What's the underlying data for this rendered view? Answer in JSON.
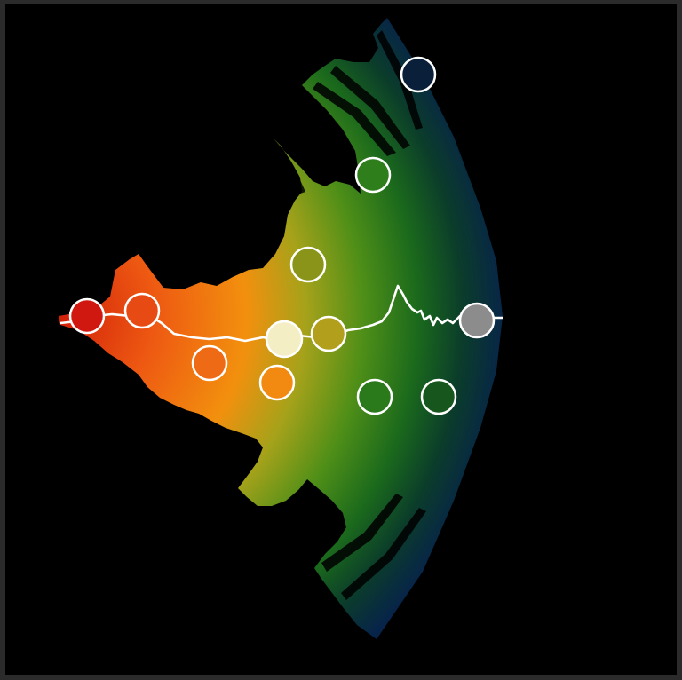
{
  "view": {
    "background": "#000000",
    "frame_color": "#2b2b2b",
    "gradient_stops": [
      {
        "offset": 0.0,
        "color": "#d2200a"
      },
      {
        "offset": 0.22,
        "color": "#ee5a12"
      },
      {
        "offset": 0.42,
        "color": "#f2900e"
      },
      {
        "offset": 0.55,
        "color": "#a6a21a"
      },
      {
        "offset": 0.68,
        "color": "#4f8f18"
      },
      {
        "offset": 0.8,
        "color": "#1b6a1c"
      },
      {
        "offset": 0.9,
        "color": "#0b3d2a"
      },
      {
        "offset": 1.0,
        "color": "#07234a"
      }
    ],
    "trace_color": "#ffffff",
    "marker_stroke": "#ffffff"
  },
  "nodes": [
    {
      "id": "node-1",
      "fill": "#d01810",
      "highlighted": false
    },
    {
      "id": "node-2",
      "fill": "#e84a14",
      "highlighted": false
    },
    {
      "id": "node-3",
      "fill": "#ee6a14",
      "highlighted": false
    },
    {
      "id": "node-4",
      "fill": "#f28a12",
      "highlighted": false
    },
    {
      "id": "node-5",
      "fill": "#f4eec4",
      "highlighted": true
    },
    {
      "id": "node-6",
      "fill": "#b2a01c",
      "highlighted": false
    },
    {
      "id": "node-7",
      "fill": "#8a9418",
      "highlighted": false
    },
    {
      "id": "node-8",
      "fill": "#2e7e1c",
      "highlighted": false
    },
    {
      "id": "node-9",
      "fill": "#2a7a1c",
      "highlighted": false
    },
    {
      "id": "node-10",
      "fill": "#17561c",
      "highlighted": false
    },
    {
      "id": "node-11",
      "fill": "#8c8c8c",
      "highlighted": false
    },
    {
      "id": "node-12",
      "fill": "#0a1f3a",
      "highlighted": false
    }
  ]
}
